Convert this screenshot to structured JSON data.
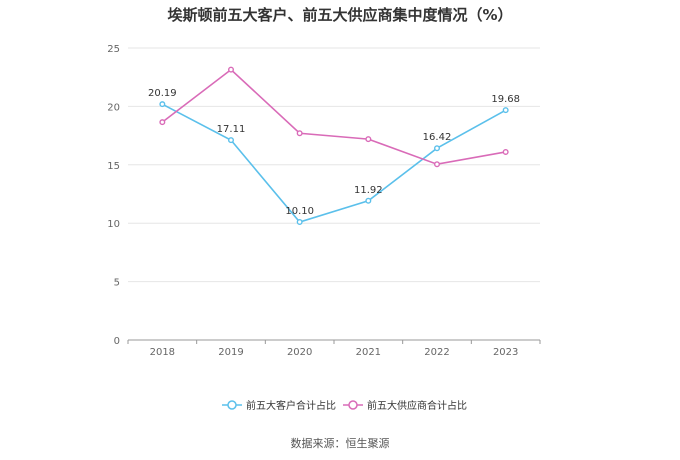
{
  "chart_data": {
    "type": "line",
    "title": "埃斯顿前五大客户、前五大供应商集中度情况（%）",
    "categories": [
      "2018",
      "2019",
      "2020",
      "2021",
      "2022",
      "2023"
    ],
    "ylim": [
      0,
      25
    ],
    "yticks": [
      0,
      5,
      10,
      15,
      20,
      25
    ],
    "grid": true,
    "legend_position": "bottom",
    "series": [
      {
        "name": "前五大客户合计占比",
        "color": "#5bc0eb",
        "values": [
          20.19,
          17.11,
          10.1,
          11.92,
          16.42,
          19.68
        ],
        "labels": [
          "20.19",
          "17.11",
          "10.10",
          "11.92",
          "16.42",
          "19.68"
        ]
      },
      {
        "name": "前五大供应商合计占比",
        "color": "#d96bb8",
        "values": [
          18.65,
          23.15,
          17.7,
          17.2,
          15.05,
          16.1
        ],
        "labels": null
      }
    ]
  },
  "source": "数据来源：恒生聚源"
}
